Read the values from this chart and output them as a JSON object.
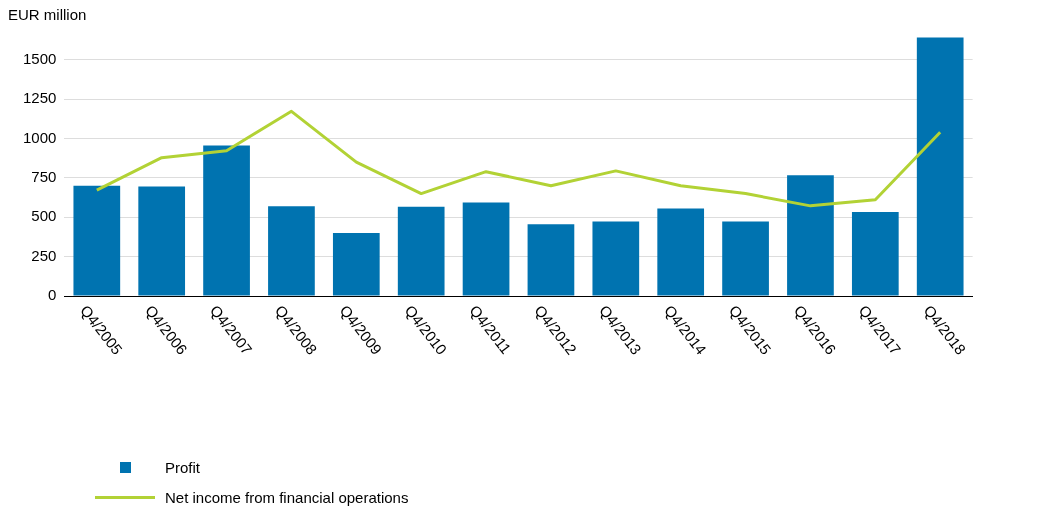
{
  "chart_data": {
    "type": "bar",
    "ylabel": "EUR million",
    "categories": [
      "Q4/2005",
      "Q4/2006",
      "Q4/2007",
      "Q4/2008",
      "Q4/2009",
      "Q4/2010",
      "Q4/2011",
      "Q4/2012",
      "Q4/2013",
      "Q4/2014",
      "Q4/2015",
      "Q4/2016",
      "Q4/2017",
      "Q4/2018"
    ],
    "series": [
      {
        "name": "Profit",
        "color": "#0073b0",
        "values": [
          700,
          695,
          955,
          570,
          400,
          567,
          594,
          455,
          472,
          555,
          472,
          767,
          533,
          1640
        ]
      },
      {
        "name": "Net income from financial operations",
        "type": "line",
        "color": "#b2d235",
        "values": [
          672,
          878,
          922,
          1172,
          850,
          650,
          789,
          700,
          794,
          700,
          650,
          572,
          611,
          1039
        ]
      }
    ],
    "ylim": [
      0,
      1650
    ],
    "yticks": [
      0,
      250,
      500,
      750,
      1000,
      1250,
      1500
    ],
    "grid": "y",
    "legend": "bottom"
  }
}
